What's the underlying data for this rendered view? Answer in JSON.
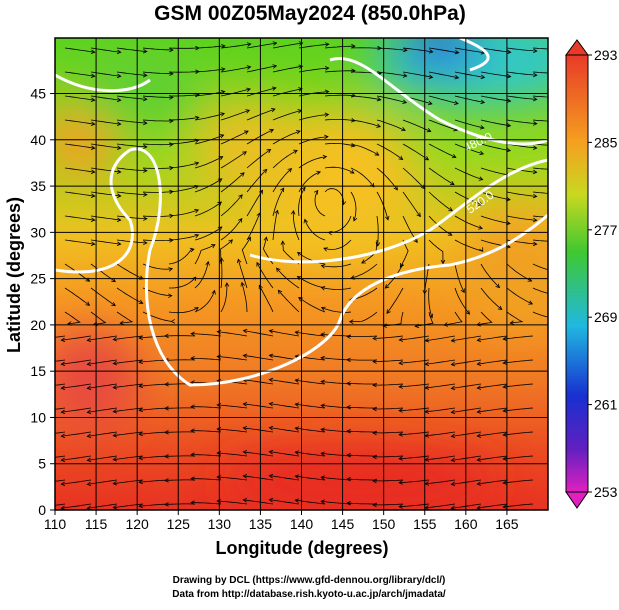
{
  "header": {
    "title": "GSM 00Z05May2024 (850.0hPa)"
  },
  "map": {
    "xlabel": "Longitude (degrees)",
    "ylabel": "Latitude  (degrees)",
    "xlim": [
      110,
      170
    ],
    "ylim": [
      0,
      51
    ],
    "xticks": [
      110,
      115,
      120,
      125,
      130,
      135,
      140,
      145,
      150,
      155,
      160,
      165
    ],
    "yticks": [
      0,
      5,
      10,
      15,
      20,
      25,
      30,
      35,
      40,
      45
    ],
    "contour_labels": [
      "480.0",
      "520.0"
    ]
  },
  "colorbar": {
    "lim": [
      253,
      293
    ],
    "ticks": [
      253,
      261,
      269,
      277,
      285,
      293
    ]
  },
  "footer": {
    "credit": "Drawing by DCL (https://www.gfd-dennou.org/library/dcl/)",
    "source": "Data from http://database.rish.kyoto-u.ac.jp/arch/jmadata/"
  }
}
